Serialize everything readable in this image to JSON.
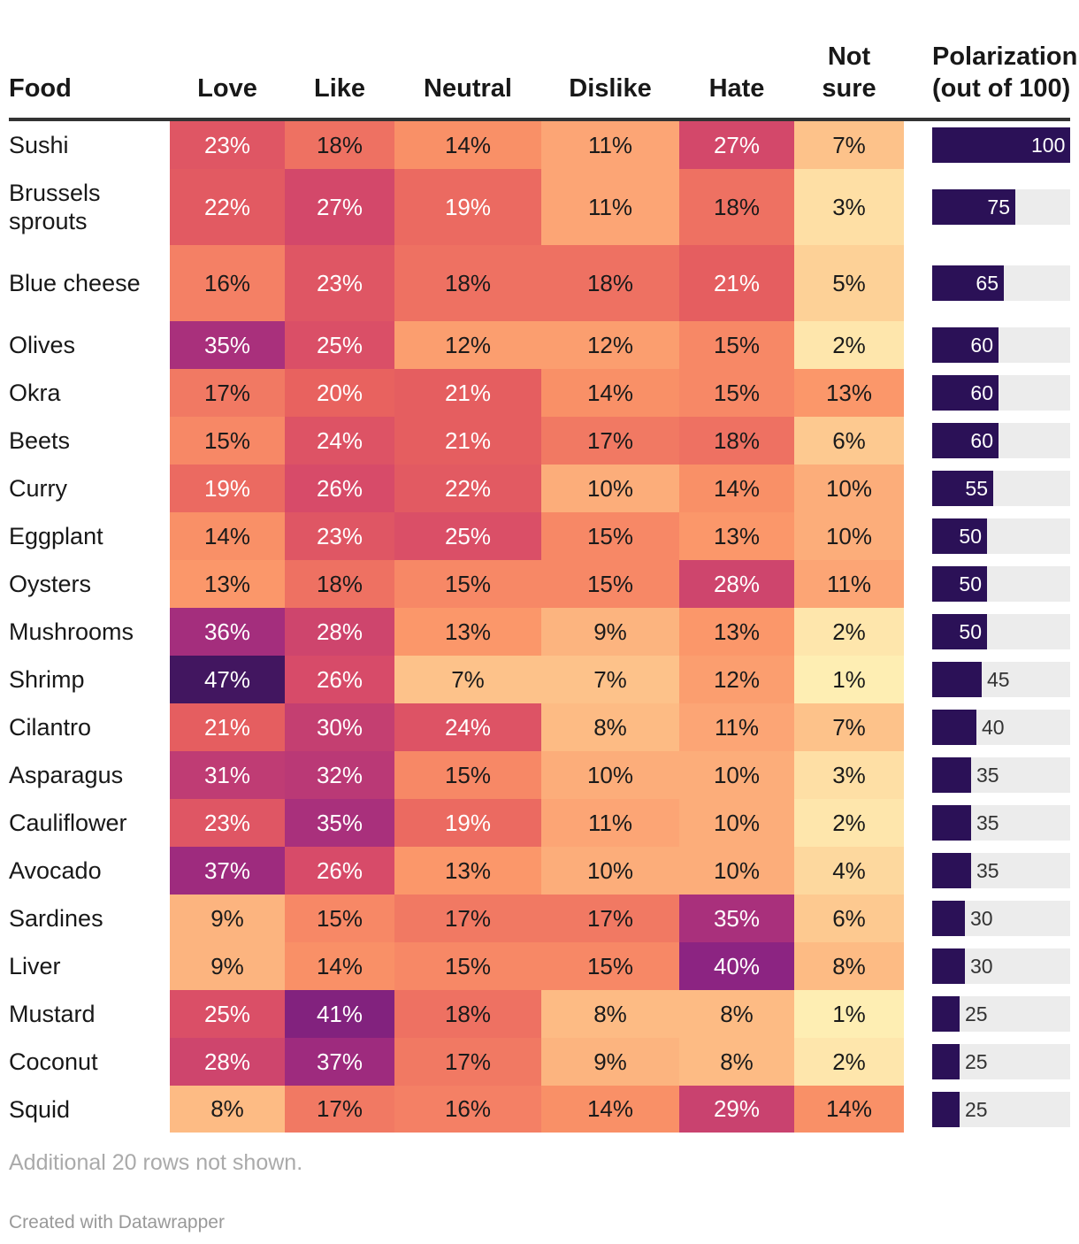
{
  "chart_data": {
    "type": "table",
    "columns": [
      "Food",
      "Love",
      "Like",
      "Neutral",
      "Dislike",
      "Hate",
      "Not sure",
      "Polarization (out of 100)"
    ],
    "header": {
      "food": "Food",
      "love": "Love",
      "like": "Like",
      "neutral": "Neutral",
      "dislike": "Dislike",
      "hate": "Hate",
      "not_sure_line1": "Not",
      "not_sure_line2": "sure",
      "polarization_line1": "Polarization",
      "polarization_line2": "(out of 100)"
    },
    "rows": [
      {
        "food": "Sushi",
        "values": [
          23,
          18,
          14,
          11,
          27,
          7
        ],
        "polarization": 100
      },
      {
        "food": "Brussels sprouts",
        "values": [
          22,
          27,
          19,
          11,
          18,
          3
        ],
        "polarization": 75
      },
      {
        "food": "Blue cheese",
        "values": [
          16,
          23,
          18,
          18,
          21,
          5
        ],
        "polarization": 65
      },
      {
        "food": "Olives",
        "values": [
          35,
          25,
          12,
          12,
          15,
          2
        ],
        "polarization": 60
      },
      {
        "food": "Okra",
        "values": [
          17,
          20,
          21,
          14,
          15,
          13
        ],
        "polarization": 60
      },
      {
        "food": "Beets",
        "values": [
          15,
          24,
          21,
          17,
          18,
          6
        ],
        "polarization": 60
      },
      {
        "food": "Curry",
        "values": [
          19,
          26,
          22,
          10,
          14,
          10
        ],
        "polarization": 55
      },
      {
        "food": "Eggplant",
        "values": [
          14,
          23,
          25,
          15,
          13,
          10
        ],
        "polarization": 50
      },
      {
        "food": "Oysters",
        "values": [
          13,
          18,
          15,
          15,
          28,
          11
        ],
        "polarization": 50
      },
      {
        "food": "Mushrooms",
        "values": [
          36,
          28,
          13,
          9,
          13,
          2
        ],
        "polarization": 50
      },
      {
        "food": "Shrimp",
        "values": [
          47,
          26,
          7,
          7,
          12,
          1
        ],
        "polarization": 45
      },
      {
        "food": "Cilantro",
        "values": [
          21,
          30,
          24,
          8,
          11,
          7
        ],
        "polarization": 40
      },
      {
        "food": "Asparagus",
        "values": [
          31,
          32,
          15,
          10,
          10,
          3
        ],
        "polarization": 35
      },
      {
        "food": "Cauliflower",
        "values": [
          23,
          35,
          19,
          11,
          10,
          2
        ],
        "polarization": 35
      },
      {
        "food": "Avocado",
        "values": [
          37,
          26,
          13,
          10,
          10,
          4
        ],
        "polarization": 35
      },
      {
        "food": "Sardines",
        "values": [
          9,
          15,
          17,
          17,
          35,
          6
        ],
        "polarization": 30
      },
      {
        "food": "Liver",
        "values": [
          9,
          14,
          15,
          15,
          40,
          8
        ],
        "polarization": 30
      },
      {
        "food": "Mustard",
        "values": [
          25,
          41,
          18,
          8,
          8,
          1
        ],
        "polarization": 25
      },
      {
        "food": "Coconut",
        "values": [
          28,
          37,
          17,
          9,
          8,
          2
        ],
        "polarization": 25
      },
      {
        "food": "Squid",
        "values": [
          8,
          17,
          16,
          14,
          29,
          14
        ],
        "polarization": 25
      }
    ],
    "value_suffix": "%",
    "polarization_range": [
      0,
      100
    ],
    "color_scale": [
      "#fef5ba",
      "#fdc48b",
      "#fb9468",
      "#e8615f",
      "#d4486a",
      "#b2347a",
      "#8a2382",
      "#421660"
    ],
    "bar_color": "#2b1157",
    "bar_track_color": "#ececec"
  },
  "footer": {
    "note": "Additional 20 rows not shown.",
    "credit": "Created with Datawrapper"
  }
}
